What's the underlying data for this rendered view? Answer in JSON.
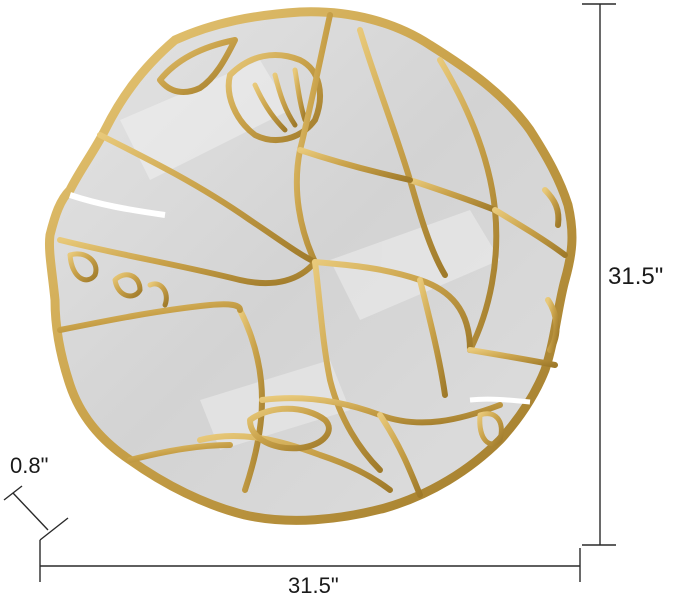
{
  "dimensions": {
    "width_label": "31.5\"",
    "height_label": "31.5\"",
    "depth_label": "0.8\""
  },
  "product": {
    "mirror_name": "mirror",
    "frame_name": "gold-frame"
  },
  "colors": {
    "gold": "#c9a24a",
    "gold_dark": "#a77f2c",
    "gold_light": "#e6c777",
    "mirror": "#d8d8d8",
    "mirror_light": "#ececec",
    "line": "#2a2a2a"
  }
}
